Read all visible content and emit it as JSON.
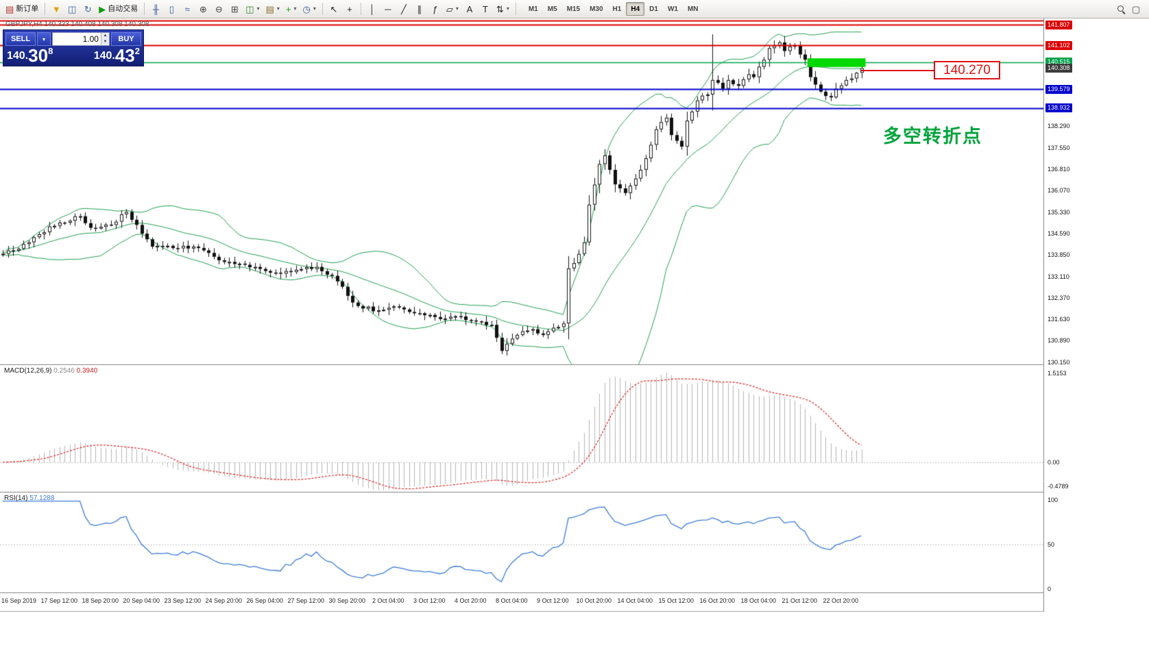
{
  "colors": {
    "bollinger_green": "#1fa14f",
    "macd_hist": "#b4b4b4",
    "macd_signal": "#dd2222",
    "rsi_line": "#3a7bd5",
    "rect_green": "#00d800",
    "current_tag_bg": "#3c3c3c",
    "annotation_green": "#00a43c",
    "callout_red": "#e01010",
    "bear_body": "#111111",
    "bull_body": "#ffffff"
  },
  "toolbar": {
    "items": [
      {
        "name": "new-order-button",
        "icon": "new-order-icon",
        "glyph": "▤",
        "color": "#b03030",
        "label": "新订单"
      },
      {
        "sep": true
      },
      {
        "name": "metaeditor-button",
        "icon": "funnel-icon",
        "glyph": "▼",
        "color": "#e0a000"
      },
      {
        "name": "market-watch-button",
        "icon": "book-icon",
        "glyph": "◫",
        "color": "#3a62b0"
      },
      {
        "name": "refresh-button",
        "icon": "refresh-icon",
        "glyph": "↻",
        "color": "#3a62b0"
      },
      {
        "name": "auto-trading-button",
        "icon": "play-icon",
        "glyph": "▶",
        "color": "#119911",
        "label": "自动交易"
      },
      {
        "sep": true
      },
      {
        "name": "ohlc-bars-button",
        "icon": "ohlc-bars-icon",
        "glyph": "╫",
        "color": "#335a9a"
      },
      {
        "name": "candlestick-button",
        "icon": "candlestick-icon",
        "glyph": "▯",
        "color": "#335a9a"
      },
      {
        "name": "line-chart-button",
        "icon": "line-chart-icon",
        "glyph": "≈",
        "color": "#335a9a"
      },
      {
        "name": "zoom-in-button",
        "icon": "zoom-in-icon",
        "glyph": "⊕",
        "color": "#444444"
      },
      {
        "name": "zoom-out-button",
        "icon": "zoom-out-icon",
        "glyph": "⊖",
        "color": "#444444"
      },
      {
        "name": "tile-windows-button",
        "icon": "tile-windows-icon",
        "glyph": "⊞",
        "color": "#444444"
      },
      {
        "name": "new-chart-button",
        "icon": "new-chart-icon",
        "glyph": "◫",
        "color": "#2f7f2f",
        "dd": true
      },
      {
        "name": "profiles-button",
        "icon": "profiles-icon",
        "glyph": "▤",
        "color": "#8a6a2a",
        "dd": true
      },
      {
        "name": "indicators-button",
        "icon": "indicators-icon",
        "glyph": "+",
        "color": "#0c9a0c",
        "dd": true
      },
      {
        "name": "periods-button",
        "icon": "clock-icon",
        "glyph": "◷",
        "color": "#335a9a",
        "dd": true
      },
      {
        "sep": true
      },
      {
        "name": "cursor-button",
        "icon": "cursor-icon",
        "glyph": "↖",
        "color": "#222222"
      },
      {
        "name": "crosshair-button",
        "icon": "crosshair-icon",
        "glyph": "+",
        "color": "#222222"
      },
      {
        "sep": true
      },
      {
        "name": "vertical-line-button",
        "icon": "vertical-line-icon",
        "glyph": "│",
        "color": "#222222"
      },
      {
        "name": "horizontal-line-button",
        "icon": "horizontal-line-icon",
        "glyph": "─",
        "color": "#222222"
      },
      {
        "name": "trendline-button",
        "icon": "trendline-icon",
        "glyph": "╱",
        "color": "#222222"
      },
      {
        "name": "channel-button",
        "icon": "channel-icon",
        "glyph": "∥",
        "color": "#222222"
      },
      {
        "name": "fibonacci-button",
        "icon": "fibonacci-icon",
        "glyph": "ƒ",
        "color": "#222222"
      },
      {
        "name": "shapes-button",
        "icon": "shapes-icon",
        "glyph": "▱",
        "color": "#222222",
        "dd": true
      },
      {
        "name": "text-button",
        "icon": "text-icon",
        "glyph": "A",
        "color": "#222222"
      },
      {
        "name": "text-label-button",
        "icon": "text-label-icon",
        "glyph": "T",
        "color": "#222222"
      },
      {
        "name": "arrows-button",
        "icon": "arrows-icon",
        "glyph": "⇅",
        "color": "#222222",
        "dd": true
      },
      {
        "sep": true
      }
    ],
    "timeframes": [
      "M1",
      "M5",
      "M15",
      "M30",
      "H1",
      "H4",
      "D1",
      "W1",
      "MN"
    ],
    "active_timeframe": "H4",
    "right_items": [
      {
        "name": "search-button",
        "icon": "search-icon",
        "glyph": "mag"
      },
      {
        "name": "new-window-button",
        "icon": "window-icon",
        "glyph": "▢",
        "color": "#555555"
      }
    ]
  },
  "chart": {
    "title": "GBPJPY,H4 140.323 140.408 140.308 140.308",
    "order_panel": {
      "sell_label": "SELL",
      "buy_label": "BUY",
      "volume": "1.00",
      "sell_prefix": "140.",
      "sell_big": "30",
      "sell_sup": "8",
      "buy_prefix": "140.",
      "buy_big": "43",
      "buy_sup": "2"
    },
    "annotation": "多空转折点",
    "callout": "140.270"
  },
  "indicators": {
    "macd": {
      "label": "MACD(12,26,9)",
      "main": "0.2546",
      "signal": "0.3940",
      "axis_max": "1.5153",
      "axis_zero": "0.00",
      "axis_min": "-0.4789",
      "params": [
        12,
        26,
        9
      ]
    },
    "rsi": {
      "label": "RSI(14)",
      "value": "57.1288",
      "period": 14,
      "axis": [
        "100",
        "50",
        "0"
      ]
    }
  },
  "chart_data": {
    "type": "candlestick",
    "symbol": "GBPJPY",
    "timeframe": "H4",
    "bars": 168,
    "price_anchors": [
      [
        0,
        133.9
      ],
      [
        5,
        134.3
      ],
      [
        9,
        134.85
      ],
      [
        15,
        135.2
      ],
      [
        17,
        134.8
      ],
      [
        21,
        134.9
      ],
      [
        24,
        135.35
      ],
      [
        26,
        134.9
      ],
      [
        29,
        134.15
      ],
      [
        33,
        134.1
      ],
      [
        37,
        134.15
      ],
      [
        41,
        133.8
      ],
      [
        45,
        133.55
      ],
      [
        49,
        133.45
      ],
      [
        53,
        133.25
      ],
      [
        57,
        133.35
      ],
      [
        61,
        133.45
      ],
      [
        65,
        132.95
      ],
      [
        67,
        132.45
      ],
      [
        69,
        132.1
      ],
      [
        73,
        131.95
      ],
      [
        77,
        132.05
      ],
      [
        81,
        131.85
      ],
      [
        85,
        131.65
      ],
      [
        88,
        131.75
      ],
      [
        91,
        131.6
      ],
      [
        95,
        131.45
      ],
      [
        97,
        130.55
      ],
      [
        98,
        130.8
      ],
      [
        100,
        131.1
      ],
      [
        103,
        131.3
      ],
      [
        105,
        131.1
      ],
      [
        107,
        131.35
      ],
      [
        109,
        131.5
      ],
      [
        110,
        133.4
      ],
      [
        112,
        133.9
      ],
      [
        113,
        134.3
      ],
      [
        114,
        135.6
      ],
      [
        116,
        137.0
      ],
      [
        117,
        137.3
      ],
      [
        118,
        136.8
      ],
      [
        119,
        136.3
      ],
      [
        121,
        136.0
      ],
      [
        123,
        136.5
      ],
      [
        125,
        137.2
      ],
      [
        127,
        138.2
      ],
      [
        129,
        138.6
      ],
      [
        130,
        138.0
      ],
      [
        132,
        137.6
      ],
      [
        133,
        138.5
      ],
      [
        135,
        139.2
      ],
      [
        137,
        139.4
      ],
      [
        138,
        139.9
      ],
      [
        140,
        139.6
      ],
      [
        141,
        139.9
      ],
      [
        143,
        139.7
      ],
      [
        145,
        140.1
      ],
      [
        146,
        140.0
      ],
      [
        148,
        140.6
      ],
      [
        149,
        141.0
      ],
      [
        151,
        141.2
      ],
      [
        152,
        140.9
      ],
      [
        154,
        141.1
      ],
      [
        156,
        140.6
      ],
      [
        157,
        140.0
      ],
      [
        159,
        139.5
      ],
      [
        161,
        139.3
      ],
      [
        162,
        139.6
      ],
      [
        164,
        139.9
      ],
      [
        166,
        140.15
      ],
      [
        167,
        140.308
      ]
    ],
    "spike": {
      "index": 138,
      "high": 141.48,
      "low": 138.85
    },
    "noise_seed": 7,
    "noise_amp": 0.07,
    "bollinger": {
      "period": 20,
      "deviation": 2
    },
    "y_grid": {
      "base": 130.15,
      "step": 0.74,
      "max_label": 138.29
    },
    "h_lines": [
      {
        "price": 141.95,
        "color": "#dd0000",
        "label": ""
      },
      {
        "price": 141.807,
        "color": "#dd0000",
        "label": "141.807"
      },
      {
        "price": 141.102,
        "color": "#dd0000",
        "label": "141.102"
      },
      {
        "price": 140.515,
        "color": "#00a24a",
        "label": "140.515"
      },
      {
        "price": 139.579,
        "color": "#0000cc",
        "label": "139.579"
      },
      {
        "price": 138.932,
        "color": "#0000cc",
        "label": "138.932"
      }
    ],
    "current_price": {
      "value": 140.308,
      "label": "140.308"
    },
    "rect_zone": {
      "from_bar": 156.5,
      "to_bar": 167.8,
      "price_top": 140.65,
      "price_bottom": 140.35
    },
    "x_labels": [
      "16 Sep 2019",
      "17 Sep 12:00",
      "18 Sep 20:00",
      "20 Sep 04:00",
      "23 Sep 12:00",
      "24 Sep 20:00",
      "26 Sep 04:00",
      "27 Sep 12:00",
      "30 Sep 20:00",
      "2 Oct 04:00",
      "3 Oct 12:00",
      "4 Oct 20:00",
      "8 Oct 04:00",
      "9 Oct 12:00",
      "10 Oct 20:00",
      "14 Oct 04:00",
      "15 Oct 12:00",
      "16 Oct 20:00",
      "18 Oct 04:00",
      "21 Oct 12:00",
      "22 Oct 20:00"
    ],
    "x_label_indices": [
      0,
      11,
      19,
      27,
      35,
      43,
      51,
      59,
      67,
      75,
      83,
      91,
      99,
      107,
      115,
      123,
      131,
      139,
      147,
      155,
      163
    ]
  }
}
